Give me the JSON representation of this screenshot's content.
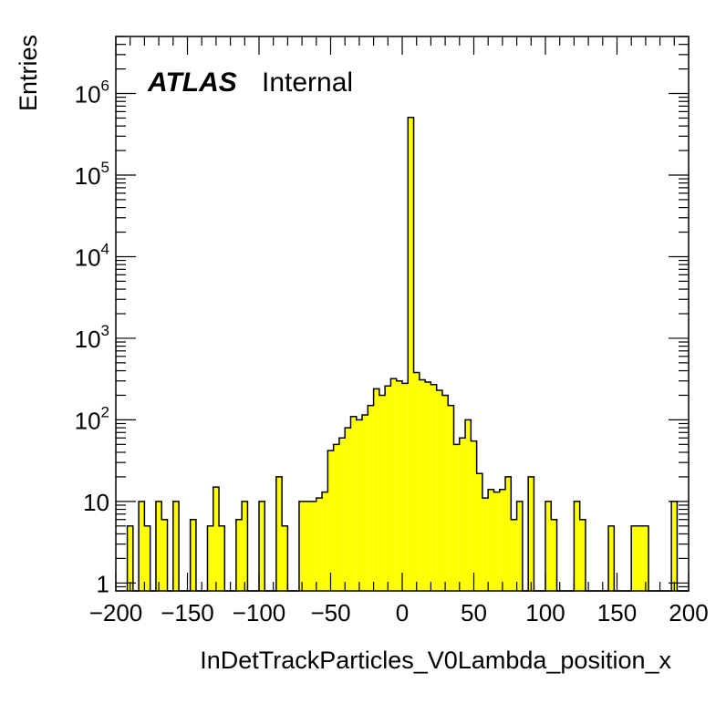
{
  "chart_data": {
    "type": "bar",
    "histogram": true,
    "xlabel": "InDetTrackParticles_V0Lambda_position_x",
    "ylabel": "Entries",
    "label_bold": "ATLAS",
    "label_status": "Internal",
    "xlim": [
      -200,
      200
    ],
    "ylim": [
      0.8,
      5000000
    ],
    "log_y": true,
    "bin_width": 4,
    "x_ticks": [
      "−200",
      "−150",
      "−100",
      "−50",
      "0",
      "50",
      "100",
      "150",
      "200"
    ],
    "x_tick_values": [
      -200,
      -150,
      -100,
      -50,
      0,
      50,
      100,
      150,
      200
    ],
    "y_ticks": [
      {
        "value": 1,
        "base": "1",
        "exp": ""
      },
      {
        "value": 10,
        "base": "10",
        "exp": ""
      },
      {
        "value": 100,
        "base": "10",
        "exp": "2"
      },
      {
        "value": 1000,
        "base": "10",
        "exp": "3"
      },
      {
        "value": 10000,
        "base": "10",
        "exp": "4"
      },
      {
        "value": 100000,
        "base": "10",
        "exp": "5"
      },
      {
        "value": 1000000,
        "base": "10",
        "exp": "6"
      }
    ],
    "fill_color": "#ffff00",
    "line_color": "#000000",
    "bins": [
      {
        "x": -192,
        "y": 5
      },
      {
        "x": -188,
        "y": 0
      },
      {
        "x": -184,
        "y": 10
      },
      {
        "x": -180,
        "y": 5
      },
      {
        "x": -176,
        "y": 0
      },
      {
        "x": -172,
        "y": 10
      },
      {
        "x": -168,
        "y": 6
      },
      {
        "x": -164,
        "y": 0
      },
      {
        "x": -160,
        "y": 10
      },
      {
        "x": -156,
        "y": 0
      },
      {
        "x": -152,
        "y": 0
      },
      {
        "x": -148,
        "y": 6
      },
      {
        "x": -144,
        "y": 0
      },
      {
        "x": -140,
        "y": 0
      },
      {
        "x": -136,
        "y": 5
      },
      {
        "x": -132,
        "y": 15
      },
      {
        "x": -128,
        "y": 5
      },
      {
        "x": -124,
        "y": 0
      },
      {
        "x": -120,
        "y": 0
      },
      {
        "x": -116,
        "y": 6
      },
      {
        "x": -112,
        "y": 10
      },
      {
        "x": -108,
        "y": 0
      },
      {
        "x": -104,
        "y": 0
      },
      {
        "x": -100,
        "y": 10
      },
      {
        "x": -96,
        "y": 0
      },
      {
        "x": -92,
        "y": 0
      },
      {
        "x": -88,
        "y": 20
      },
      {
        "x": -84,
        "y": 5
      },
      {
        "x": -80,
        "y": 0
      },
      {
        "x": -76,
        "y": 0
      },
      {
        "x": -72,
        "y": 10
      },
      {
        "x": -68,
        "y": 10
      },
      {
        "x": -64,
        "y": 10
      },
      {
        "x": -60,
        "y": 11
      },
      {
        "x": -56,
        "y": 13
      },
      {
        "x": -52,
        "y": 42
      },
      {
        "x": -48,
        "y": 50
      },
      {
        "x": -44,
        "y": 60
      },
      {
        "x": -40,
        "y": 80
      },
      {
        "x": -36,
        "y": 110
      },
      {
        "x": -32,
        "y": 100
      },
      {
        "x": -28,
        "y": 115
      },
      {
        "x": -24,
        "y": 150
      },
      {
        "x": -20,
        "y": 240
      },
      {
        "x": -16,
        "y": 200
      },
      {
        "x": -12,
        "y": 260
      },
      {
        "x": -8,
        "y": 320
      },
      {
        "x": -4,
        "y": 300
      },
      {
        "x": 0,
        "y": 280
      },
      {
        "x": 4,
        "y": 510000
      },
      {
        "x": 8,
        "y": 380
      },
      {
        "x": 12,
        "y": 310
      },
      {
        "x": 16,
        "y": 290
      },
      {
        "x": 20,
        "y": 270
      },
      {
        "x": 24,
        "y": 230
      },
      {
        "x": 28,
        "y": 200
      },
      {
        "x": 32,
        "y": 150
      },
      {
        "x": 36,
        "y": 50
      },
      {
        "x": 40,
        "y": 60
      },
      {
        "x": 44,
        "y": 100
      },
      {
        "x": 48,
        "y": 55
      },
      {
        "x": 52,
        "y": 22
      },
      {
        "x": 56,
        "y": 11
      },
      {
        "x": 60,
        "y": 14
      },
      {
        "x": 64,
        "y": 13
      },
      {
        "x": 68,
        "y": 14
      },
      {
        "x": 72,
        "y": 20
      },
      {
        "x": 76,
        "y": 6
      },
      {
        "x": 80,
        "y": 10
      },
      {
        "x": 84,
        "y": 0
      },
      {
        "x": 88,
        "y": 20
      },
      {
        "x": 92,
        "y": 0
      },
      {
        "x": 96,
        "y": 0
      },
      {
        "x": 100,
        "y": 10
      },
      {
        "x": 104,
        "y": 6
      },
      {
        "x": 108,
        "y": 0
      },
      {
        "x": 112,
        "y": 0
      },
      {
        "x": 116,
        "y": 0
      },
      {
        "x": 120,
        "y": 10
      },
      {
        "x": 124,
        "y": 6
      },
      {
        "x": 128,
        "y": 0
      },
      {
        "x": 132,
        "y": 0
      },
      {
        "x": 136,
        "y": 0
      },
      {
        "x": 140,
        "y": 0
      },
      {
        "x": 144,
        "y": 5
      },
      {
        "x": 148,
        "y": 0
      },
      {
        "x": 152,
        "y": 0
      },
      {
        "x": 156,
        "y": 0
      },
      {
        "x": 160,
        "y": 5
      },
      {
        "x": 164,
        "y": 5
      },
      {
        "x": 168,
        "y": 5
      },
      {
        "x": 172,
        "y": 0
      },
      {
        "x": 176,
        "y": 0
      },
      {
        "x": 180,
        "y": 0
      },
      {
        "x": 184,
        "y": 0
      },
      {
        "x": 188,
        "y": 10
      },
      {
        "x": 192,
        "y": 0
      },
      {
        "x": 196,
        "y": 0
      }
    ]
  }
}
